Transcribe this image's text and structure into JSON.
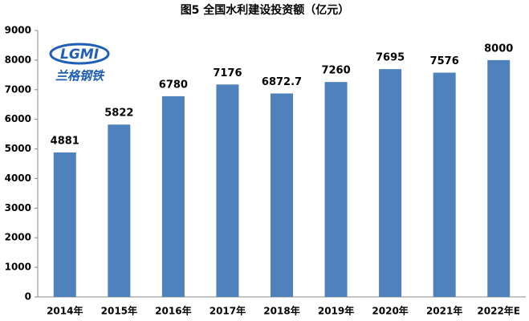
{
  "chart_data": {
    "type": "bar",
    "title": "图5 全国水利建设投资额（亿元）",
    "categories": [
      "2014年",
      "2015年",
      "2016年",
      "2017年",
      "2018年",
      "2019年",
      "2020年",
      "2021年",
      "2022年E"
    ],
    "values": [
      4881,
      5822,
      6780,
      7176,
      6872.7,
      7260,
      7695,
      7576,
      8000
    ],
    "color": "#4f81bd",
    "ylim": [
      0,
      9000
    ],
    "yticks": [
      0,
      1000,
      2000,
      3000,
      4000,
      5000,
      6000,
      7000,
      8000,
      9000
    ],
    "grid": false
  },
  "logo": {
    "mark": "LGMI",
    "name": "兰格钢铁"
  }
}
